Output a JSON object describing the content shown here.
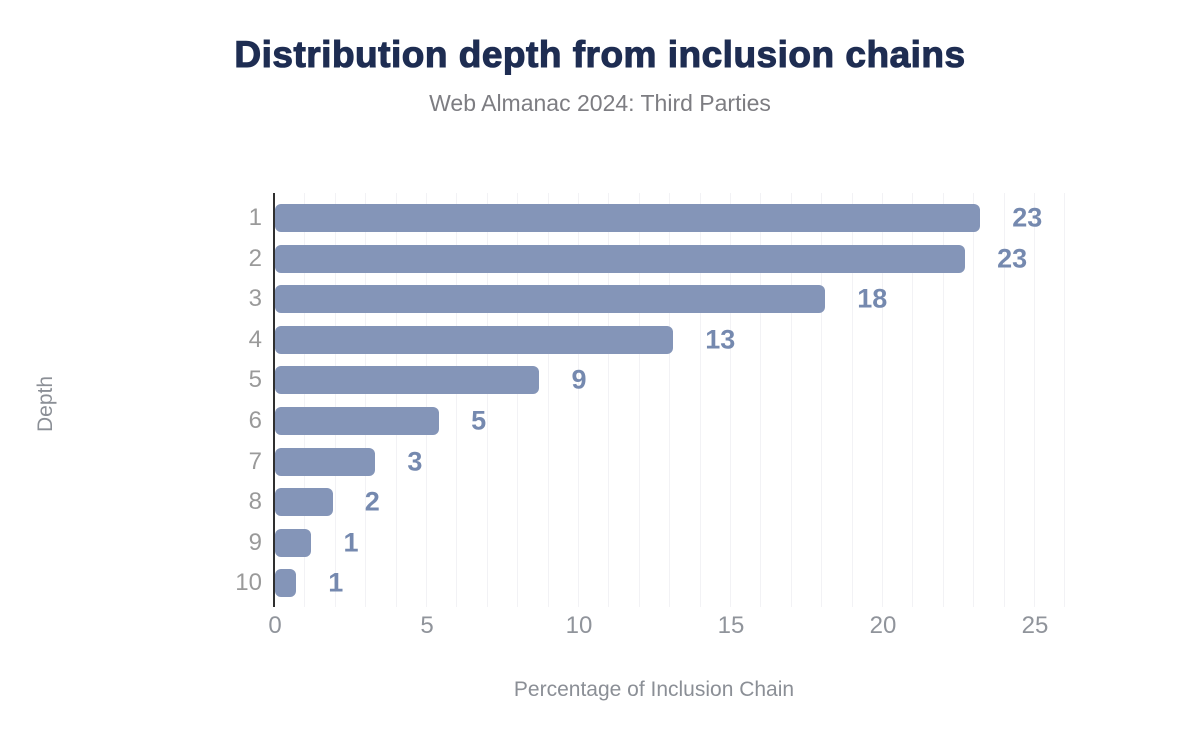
{
  "chart_data": {
    "type": "bar",
    "orientation": "horizontal",
    "title": "Distribution depth from inclusion chains",
    "subtitle": "Web Almanac 2024: Third Parties",
    "categories": [
      "1",
      "2",
      "3",
      "4",
      "5",
      "6",
      "7",
      "8",
      "9",
      "10"
    ],
    "values": [
      23.2,
      22.7,
      18.1,
      13.1,
      8.7,
      5.4,
      3.3,
      1.9,
      1.2,
      0.7
    ],
    "data_labels": [
      "23",
      "23",
      "18",
      "13",
      "9",
      "5",
      "3",
      "2",
      "1",
      "1"
    ],
    "xlabel": "Percentage of Inclusion Chain",
    "ylabel": "Depth",
    "xlim": [
      0,
      25
    ],
    "xticks": [
      0,
      5,
      10,
      15,
      20,
      25
    ],
    "grid": "vertical minor gridlines every 1 unit",
    "legend": "none",
    "colors": {
      "bar": "#8495b8",
      "value_labels": "#7589af",
      "gridlines": "#f2f2f5",
      "axis_line": "#2f2f2f",
      "category_labels": "#9a9a9a",
      "tick_labels": "#90949b",
      "axis_titles": "#8b8f96",
      "title": "#1e2d52",
      "subtitle": "#7d7d82"
    }
  }
}
